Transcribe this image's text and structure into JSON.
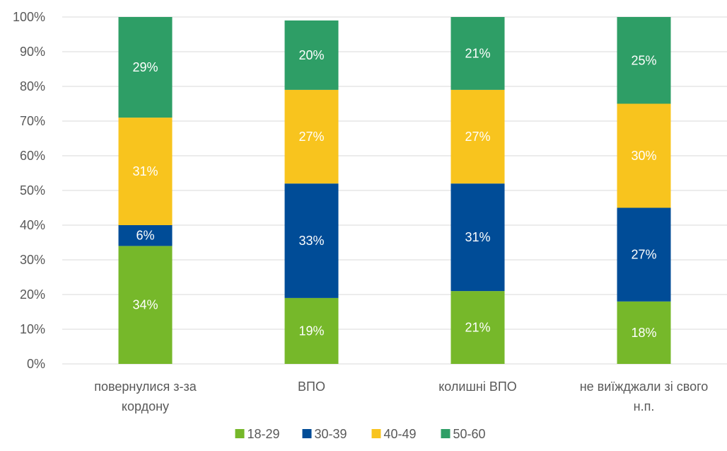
{
  "chart_data": {
    "type": "bar",
    "stacked": true,
    "percent_stacked": true,
    "categories": [
      [
        "повернулися з-за",
        "кордону"
      ],
      [
        "ВПО"
      ],
      [
        "колишні ВПО"
      ],
      [
        "не виїжджали зі свого",
        "н.п."
      ]
    ],
    "series": [
      {
        "name": "18-29",
        "color": "#76B82A",
        "values": [
          34,
          19,
          21,
          18
        ],
        "labels": [
          "34%",
          "19%",
          "21%",
          "18%"
        ],
        "label_color": "#ffffff"
      },
      {
        "name": "30-39",
        "color": "#004C97",
        "values": [
          6,
          33,
          31,
          27
        ],
        "labels": [
          "6%",
          "33%",
          "31%",
          "27%"
        ],
        "label_color": "#ffffff"
      },
      {
        "name": "40-49",
        "color": "#F8C41E",
        "values": [
          31,
          27,
          27,
          30
        ],
        "labels": [
          "31%",
          "27%",
          "27%",
          "30%"
        ],
        "label_color": "#ffffff"
      },
      {
        "name": "50-60",
        "color": "#2E9E66",
        "values": [
          29,
          20,
          21,
          25
        ],
        "labels": [
          "29%",
          "20%",
          "21%",
          "25%"
        ],
        "label_color": "#ffffff"
      }
    ],
    "y_ticks": [
      "0%",
      "10%",
      "20%",
      "30%",
      "40%",
      "50%",
      "60%",
      "70%",
      "80%",
      "90%",
      "100%"
    ],
    "ylim": [
      0,
      100
    ],
    "grid": true,
    "legend_position": "bottom"
  }
}
